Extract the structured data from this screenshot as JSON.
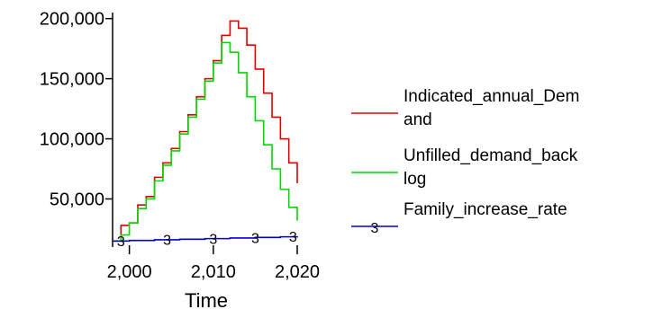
{
  "chart_data": {
    "type": "line",
    "title": "",
    "xlabel": "Time",
    "ylabel": "",
    "xlim": [
      1998,
      2020
    ],
    "ylim": [
      10000,
      205000
    ],
    "x_ticks": [
      2000,
      2010,
      2020
    ],
    "x_tick_labels": [
      "2,000",
      "2,010",
      "2,020"
    ],
    "y_ticks": [
      50000,
      100000,
      150000,
      200000
    ],
    "y_tick_labels": [
      "50,000",
      "100,000",
      "150,000",
      "200,000"
    ],
    "grid": false,
    "legend_position": "right",
    "series": [
      {
        "name": "Indicated_annual_Demand",
        "legend_lines": [
          "Indicated_annual_Dem",
          "and"
        ],
        "color": "#e00000",
        "marker_label": "",
        "x": [
          1998,
          1999,
          2000,
          2001,
          2002,
          2003,
          2004,
          2005,
          2006,
          2007,
          2008,
          2009,
          2010,
          2011,
          2012,
          2013,
          2014,
          2015,
          2016,
          2017,
          2018,
          2019,
          2020
        ],
        "y": [
          15000,
          28000,
          30000,
          45000,
          52000,
          68000,
          80000,
          92000,
          106000,
          120000,
          135000,
          150000,
          165000,
          186000,
          198000,
          192000,
          178000,
          158000,
          138000,
          118000,
          100000,
          80000,
          63000
        ]
      },
      {
        "name": "Unfilled_demand_backlog",
        "legend_lines": [
          "Unfilled_demand_back",
          "log"
        ],
        "color": "#00d800",
        "marker_label": "",
        "x": [
          1998,
          1999,
          2000,
          2001,
          2002,
          2003,
          2004,
          2005,
          2006,
          2007,
          2008,
          2009,
          2010,
          2011,
          2012,
          2013,
          2014,
          2015,
          2016,
          2017,
          2018,
          2019,
          2020
        ],
        "y": [
          15000,
          20000,
          30000,
          42000,
          50000,
          65000,
          78000,
          90000,
          104000,
          118000,
          133000,
          148000,
          163000,
          180000,
          172000,
          155000,
          135000,
          115000,
          95000,
          75000,
          58000,
          43000,
          32000
        ]
      },
      {
        "name": "Family_increase_rate",
        "legend_lines": [
          "Family_increase_rate"
        ],
        "color": "#0000d8",
        "marker_label": "3",
        "x": [
          1998,
          2000,
          2003,
          2006,
          2009,
          2012,
          2015,
          2018,
          2020
        ],
        "y": [
          15000,
          15500,
          16000,
          16500,
          17000,
          17500,
          18000,
          18500,
          19000
        ],
        "marker_x": [
          1999,
          2004.5,
          2010,
          2015,
          2019.5
        ]
      }
    ]
  }
}
